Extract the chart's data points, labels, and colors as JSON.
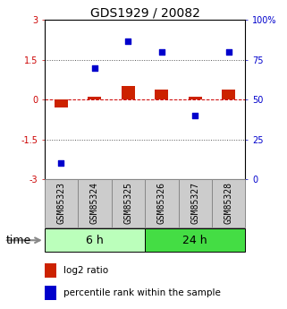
{
  "title": "GDS1929 / 20082",
  "samples": [
    "GSM85323",
    "GSM85324",
    "GSM85325",
    "GSM85326",
    "GSM85327",
    "GSM85328"
  ],
  "log2_ratio": [
    -0.28,
    0.1,
    0.52,
    0.38,
    0.12,
    0.38
  ],
  "percentile": [
    10,
    70,
    87,
    80,
    40,
    80
  ],
  "ylim_left": [
    -3,
    3
  ],
  "ylim_right": [
    0,
    100
  ],
  "yticks_left": [
    -3,
    -1.5,
    0,
    1.5,
    3
  ],
  "yticks_right": [
    0,
    25,
    50,
    75,
    100
  ],
  "ytick_labels_left": [
    "-3",
    "-1.5",
    "0",
    "1.5",
    "3"
  ],
  "ytick_labels_right": [
    "0",
    "25",
    "50",
    "75",
    "100%"
  ],
  "hlines_dotted": [
    1.5,
    -1.5
  ],
  "hline_zero_color": "#cc0000",
  "hline_dotted_color": "#555555",
  "bar_color": "#cc2200",
  "marker_color": "#0000cc",
  "group_labels": [
    "6 h",
    "24 h"
  ],
  "group_ranges": [
    [
      0,
      3
    ],
    [
      3,
      6
    ]
  ],
  "group_color_light": "#bbffbb",
  "group_color_dark": "#44dd44",
  "sample_box_color": "#cccccc",
  "sample_box_edge": "#888888",
  "legend_bar_label": "log2 ratio",
  "legend_marker_label": "percentile rank within the sample",
  "bar_width": 0.4,
  "title_fontsize": 10,
  "tick_fontsize": 7,
  "sample_fontsize": 7,
  "group_fontsize": 9,
  "legend_fontsize": 7.5
}
